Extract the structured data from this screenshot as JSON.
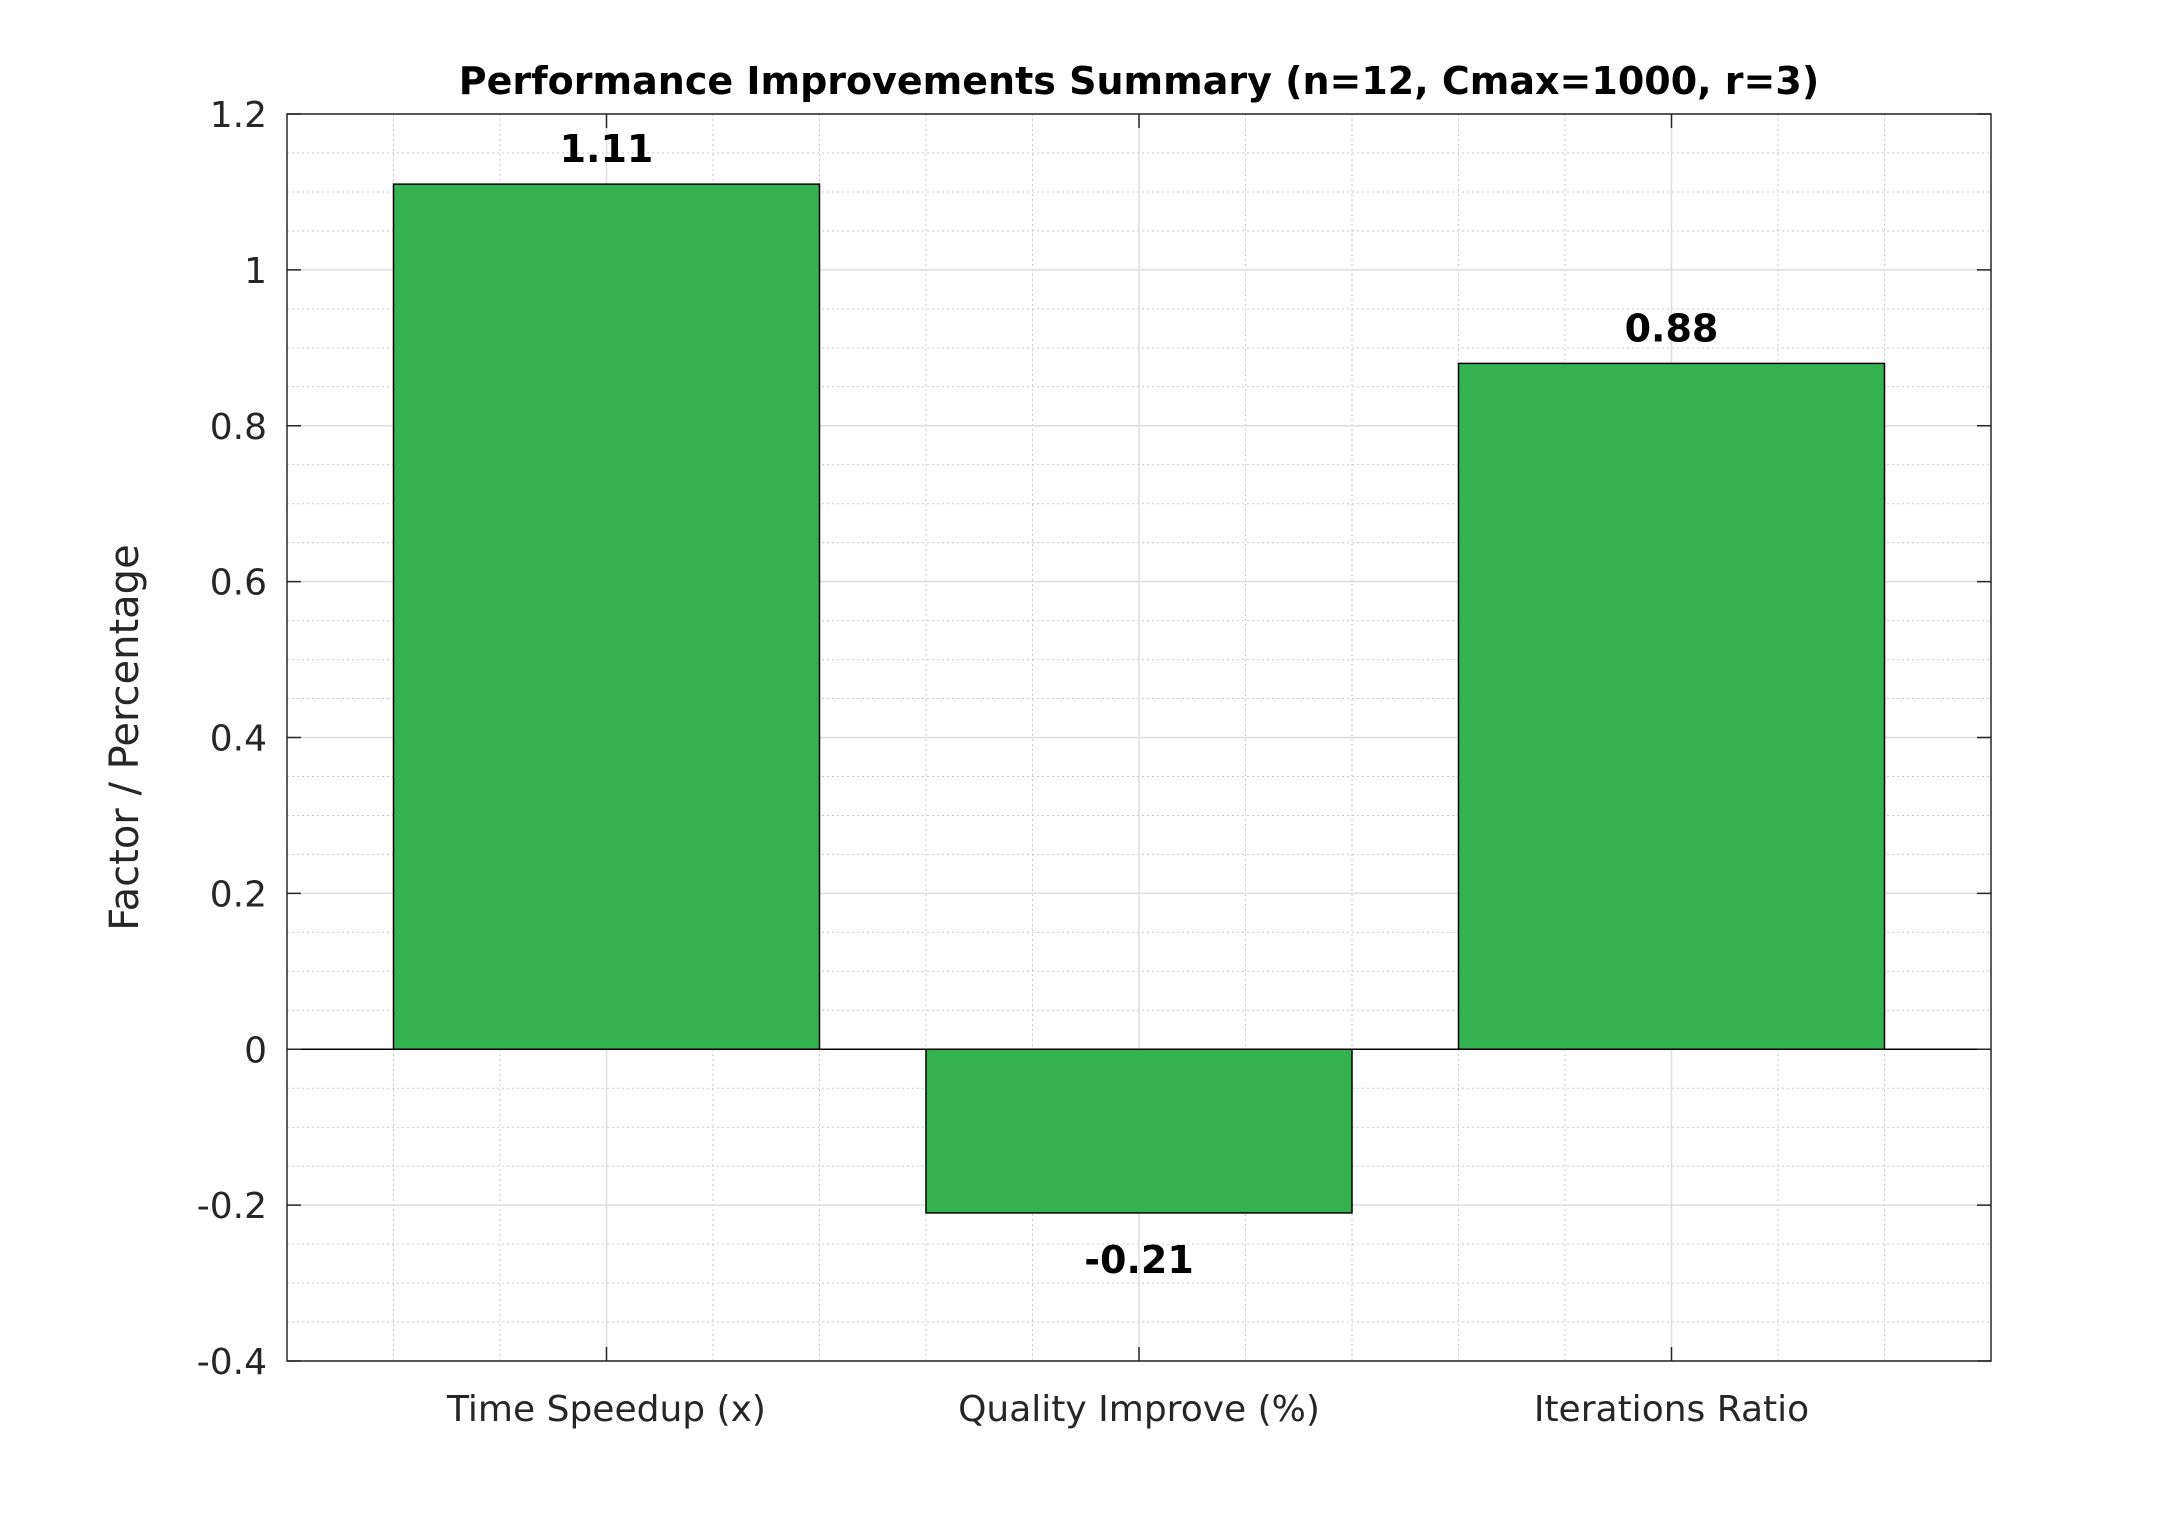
{
  "chart_data": {
    "type": "bar",
    "title": "Performance Improvements Summary (n=12, Cmax=1000, r=3)",
    "xlabel": "",
    "ylabel": "Factor / Percentage",
    "categories": [
      "Time Speedup (x)",
      "Quality Improve (%)",
      "Iterations Ratio"
    ],
    "values": [
      1.11,
      -0.21,
      0.88
    ],
    "data_labels": [
      "1.11",
      "-0.21",
      "0.88"
    ],
    "ylim": [
      -0.4,
      1.2
    ],
    "yticks": [
      -0.4,
      -0.2,
      0,
      0.2,
      0.4,
      0.6,
      0.8,
      1,
      1.2
    ],
    "ytick_labels": [
      "-0.4",
      "-0.2",
      "0",
      "0.2",
      "0.4",
      "0.6",
      "0.8",
      "1",
      "1.2"
    ],
    "grid": true,
    "minor_grid": true,
    "bar_color": "#33b24f"
  }
}
